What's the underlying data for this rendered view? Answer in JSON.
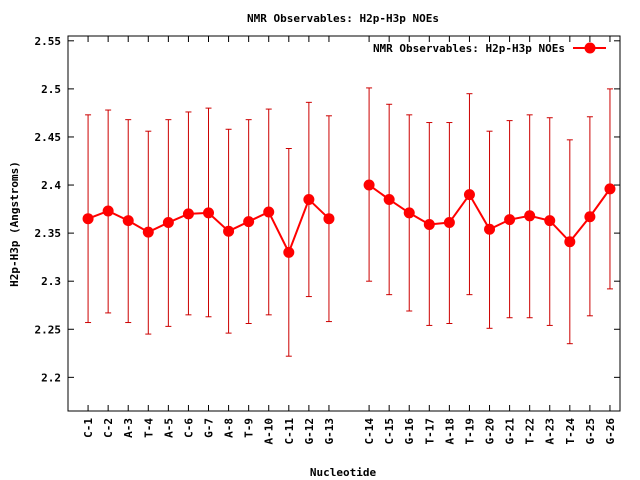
{
  "chart_data": {
    "type": "line",
    "title": "NMR Observables: H2p-H3p NOEs",
    "xlabel": "Nucleotide",
    "ylabel": "H2p-H3p (Angstroms)",
    "ylim": [
      2.165,
      2.555
    ],
    "yticks": [
      2.2,
      2.25,
      2.3,
      2.35,
      2.4,
      2.45,
      2.5,
      2.55
    ],
    "ytick_labels": [
      "2.2",
      "2.25",
      "2.3",
      "2.35",
      "2.4",
      "2.45",
      "2.5",
      "2.55"
    ],
    "legend": {
      "label": "NMR Observables: H2p-H3p NOEs",
      "position": "top-right"
    },
    "colors": {
      "series": "#ff0000",
      "errorbar": "#cc0000"
    },
    "categories": [
      "C-1",
      "C-2",
      "A-3",
      "T-4",
      "A-5",
      "C-6",
      "G-7",
      "A-8",
      "T-9",
      "A-10",
      "C-11",
      "G-12",
      "G-13",
      "C-14",
      "C-15",
      "G-16",
      "T-17",
      "A-18",
      "T-19",
      "G-20",
      "G-21",
      "T-22",
      "A-23",
      "T-24",
      "G-25",
      "G-26"
    ],
    "x": [
      1,
      2,
      3,
      4,
      5,
      6,
      7,
      8,
      9,
      10,
      11,
      12,
      13,
      15,
      16,
      17,
      18,
      19,
      20,
      21,
      22,
      23,
      24,
      25,
      26,
      27
    ],
    "series": [
      {
        "values": [
          2.365,
          2.373,
          2.363,
          2.351,
          2.361,
          2.37,
          2.371,
          2.352,
          2.362,
          2.372,
          2.33,
          2.385,
          2.365,
          2.4,
          2.385,
          2.371,
          2.359,
          2.361,
          2.39,
          2.354,
          2.364,
          2.368,
          2.363,
          2.341,
          2.367,
          2.396
        ],
        "err_low": [
          2.257,
          2.267,
          2.257,
          2.245,
          2.253,
          2.265,
          2.263,
          2.246,
          2.256,
          2.265,
          2.222,
          2.284,
          2.258,
          2.3,
          2.286,
          2.269,
          2.254,
          2.256,
          2.286,
          2.251,
          2.262,
          2.262,
          2.254,
          2.235,
          2.264,
          2.292
        ],
        "err_high": [
          2.473,
          2.478,
          2.468,
          2.456,
          2.468,
          2.476,
          2.48,
          2.458,
          2.468,
          2.479,
          2.438,
          2.486,
          2.472,
          2.501,
          2.484,
          2.473,
          2.465,
          2.465,
          2.495,
          2.456,
          2.467,
          2.473,
          2.47,
          2.447,
          2.471,
          2.5
        ]
      }
    ]
  }
}
